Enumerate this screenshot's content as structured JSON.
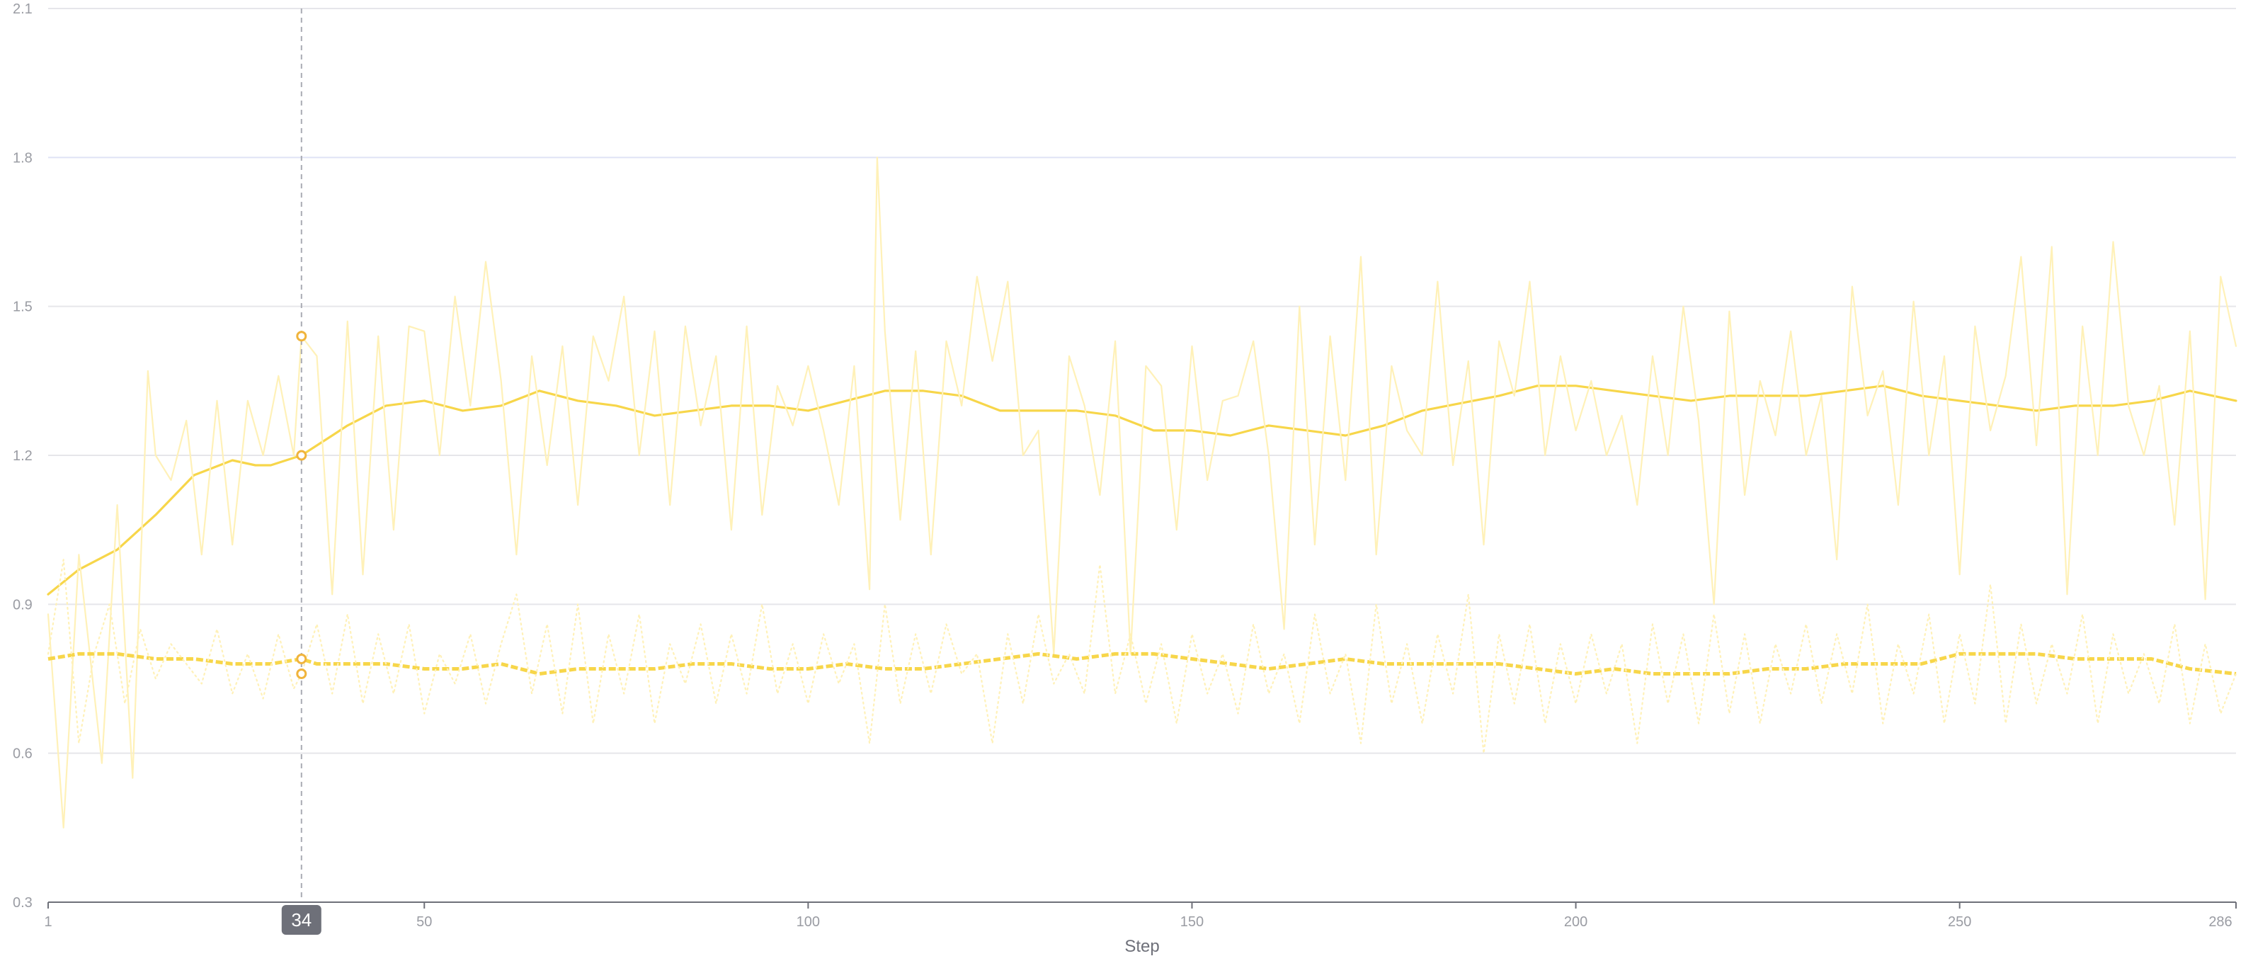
{
  "chart_data": {
    "type": "line",
    "xlabel": "Step",
    "ylabel": "",
    "xlim": [
      1,
      286
    ],
    "ylim": [
      0.3,
      2.1
    ],
    "x_ticks": [
      1,
      50,
      100,
      150,
      200,
      250,
      286
    ],
    "y_ticks": [
      0.3,
      0.6,
      0.9,
      1.2,
      1.5,
      1.8,
      2.1
    ],
    "grid": true,
    "cursor": {
      "step": 34,
      "label": "34"
    },
    "series": [
      {
        "style": "smoothed-solid",
        "color": "#f7d64a",
        "x": [
          1,
          5,
          10,
          15,
          20,
          25,
          28,
          30,
          32,
          34,
          36,
          38,
          40,
          45,
          50,
          55,
          60,
          65,
          70,
          75,
          80,
          85,
          90,
          95,
          100,
          110,
          115,
          120,
          125,
          130,
          135,
          140,
          145,
          150,
          155,
          160,
          165,
          170,
          175,
          180,
          190,
          195,
          200,
          205,
          210,
          215,
          220,
          225,
          230,
          235,
          240,
          245,
          250,
          255,
          260,
          265,
          270,
          275,
          280,
          286
        ],
        "y": [
          0.92,
          0.97,
          1.01,
          1.08,
          1.16,
          1.19,
          1.18,
          1.18,
          1.19,
          1.2,
          1.22,
          1.24,
          1.26,
          1.3,
          1.31,
          1.29,
          1.3,
          1.33,
          1.31,
          1.3,
          1.28,
          1.29,
          1.3,
          1.3,
          1.29,
          1.33,
          1.33,
          1.32,
          1.29,
          1.29,
          1.29,
          1.28,
          1.25,
          1.25,
          1.24,
          1.26,
          1.25,
          1.24,
          1.26,
          1.29,
          1.32,
          1.34,
          1.34,
          1.33,
          1.32,
          1.31,
          1.32,
          1.32,
          1.32,
          1.33,
          1.34,
          1.32,
          1.31,
          1.3,
          1.29,
          1.3,
          1.3,
          1.31,
          1.33,
          1.31
        ]
      },
      {
        "style": "raw-solid",
        "color": "#fff1b8",
        "x": [
          1,
          3,
          5,
          8,
          10,
          12,
          14,
          15,
          17,
          19,
          21,
          23,
          25,
          27,
          29,
          31,
          33,
          34,
          36,
          38,
          40,
          42,
          44,
          46,
          48,
          50,
          52,
          54,
          56,
          58,
          60,
          62,
          64,
          66,
          68,
          70,
          72,
          74,
          76,
          78,
          80,
          82,
          84,
          86,
          88,
          90,
          92,
          94,
          96,
          98,
          100,
          102,
          104,
          106,
          108,
          109,
          110,
          112,
          114,
          116,
          118,
          120,
          122,
          124,
          126,
          128,
          130,
          132,
          134,
          136,
          138,
          140,
          142,
          144,
          146,
          148,
          150,
          152,
          154,
          156,
          158,
          160,
          162,
          164,
          166,
          168,
          170,
          172,
          174,
          176,
          178,
          180,
          182,
          184,
          186,
          188,
          190,
          192,
          194,
          196,
          198,
          200,
          202,
          204,
          206,
          208,
          210,
          212,
          214,
          216,
          218,
          220,
          222,
          224,
          226,
          228,
          230,
          232,
          234,
          236,
          238,
          240,
          242,
          244,
          246,
          248,
          250,
          252,
          254,
          256,
          258,
          260,
          262,
          264,
          266,
          268,
          270,
          272,
          274,
          276,
          278,
          280,
          282,
          284,
          286
        ],
        "y": [
          0.88,
          0.45,
          1.0,
          0.58,
          1.1,
          0.55,
          1.37,
          1.2,
          1.15,
          1.27,
          1.0,
          1.31,
          1.02,
          1.31,
          1.2,
          1.36,
          1.2,
          1.44,
          1.4,
          0.92,
          1.47,
          0.96,
          1.44,
          1.05,
          1.46,
          1.45,
          1.2,
          1.52,
          1.3,
          1.59,
          1.35,
          1.0,
          1.4,
          1.18,
          1.42,
          1.1,
          1.44,
          1.35,
          1.52,
          1.2,
          1.45,
          1.1,
          1.46,
          1.26,
          1.4,
          1.05,
          1.46,
          1.08,
          1.34,
          1.26,
          1.38,
          1.25,
          1.1,
          1.38,
          0.93,
          1.8,
          1.45,
          1.07,
          1.41,
          1.0,
          1.43,
          1.3,
          1.56,
          1.39,
          1.55,
          1.2,
          1.25,
          0.8,
          1.4,
          1.3,
          1.12,
          1.43,
          0.8,
          1.38,
          1.34,
          1.05,
          1.42,
          1.15,
          1.31,
          1.32,
          1.43,
          1.2,
          0.85,
          1.5,
          1.02,
          1.44,
          1.15,
          1.6,
          1.0,
          1.38,
          1.25,
          1.2,
          1.55,
          1.18,
          1.39,
          1.02,
          1.43,
          1.32,
          1.55,
          1.2,
          1.4,
          1.25,
          1.35,
          1.2,
          1.28,
          1.1,
          1.4,
          1.2,
          1.5,
          1.27,
          0.9,
          1.49,
          1.12,
          1.35,
          1.24,
          1.45,
          1.2,
          1.32,
          0.99,
          1.54,
          1.28,
          1.37,
          1.1,
          1.51,
          1.2,
          1.4,
          0.96,
          1.46,
          1.25,
          1.36,
          1.6,
          1.22,
          1.62,
          0.92,
          1.46,
          1.2,
          1.63,
          1.3,
          1.2,
          1.34,
          1.06,
          1.45,
          0.91,
          1.56,
          1.42
        ]
      },
      {
        "style": "smoothed-dashed",
        "color": "#f7d64a",
        "x": [
          1,
          5,
          10,
          15,
          20,
          25,
          30,
          34,
          36,
          40,
          45,
          50,
          55,
          60,
          65,
          70,
          75,
          80,
          85,
          90,
          95,
          100,
          105,
          110,
          115,
          120,
          125,
          130,
          135,
          140,
          145,
          150,
          155,
          160,
          165,
          170,
          175,
          180,
          185,
          190,
          195,
          200,
          205,
          210,
          215,
          220,
          225,
          230,
          235,
          240,
          245,
          250,
          255,
          260,
          265,
          270,
          275,
          280,
          286
        ],
        "y": [
          0.79,
          0.8,
          0.8,
          0.79,
          0.79,
          0.78,
          0.78,
          0.79,
          0.78,
          0.78,
          0.78,
          0.77,
          0.77,
          0.78,
          0.76,
          0.77,
          0.77,
          0.77,
          0.78,
          0.78,
          0.77,
          0.77,
          0.78,
          0.77,
          0.77,
          0.78,
          0.79,
          0.8,
          0.79,
          0.8,
          0.8,
          0.79,
          0.78,
          0.77,
          0.78,
          0.79,
          0.78,
          0.78,
          0.78,
          0.78,
          0.77,
          0.76,
          0.77,
          0.76,
          0.76,
          0.76,
          0.77,
          0.77,
          0.78,
          0.78,
          0.78,
          0.8,
          0.8,
          0.8,
          0.79,
          0.79,
          0.79,
          0.77,
          0.76
        ]
      },
      {
        "style": "raw-dotted",
        "color": "#fff1b8",
        "x": [
          1,
          3,
          5,
          7,
          9,
          11,
          13,
          15,
          17,
          19,
          21,
          23,
          25,
          27,
          29,
          31,
          33,
          34,
          36,
          38,
          40,
          42,
          44,
          46,
          48,
          50,
          52,
          54,
          56,
          58,
          60,
          62,
          64,
          66,
          68,
          70,
          72,
          74,
          76,
          78,
          80,
          82,
          84,
          86,
          88,
          90,
          92,
          94,
          96,
          98,
          100,
          102,
          104,
          106,
          108,
          110,
          112,
          114,
          116,
          118,
          120,
          122,
          124,
          126,
          128,
          130,
          132,
          134,
          136,
          138,
          140,
          142,
          144,
          146,
          148,
          150,
          152,
          154,
          156,
          158,
          160,
          162,
          164,
          166,
          168,
          170,
          172,
          174,
          176,
          178,
          180,
          182,
          184,
          186,
          188,
          190,
          192,
          194,
          196,
          198,
          200,
          202,
          204,
          206,
          208,
          210,
          212,
          214,
          216,
          218,
          220,
          222,
          224,
          226,
          228,
          230,
          232,
          234,
          236,
          238,
          240,
          242,
          244,
          246,
          248,
          250,
          252,
          254,
          256,
          258,
          260,
          262,
          264,
          266,
          268,
          270,
          272,
          274,
          276,
          278,
          280,
          282,
          284,
          286
        ],
        "y": [
          0.8,
          0.99,
          0.62,
          0.8,
          0.9,
          0.7,
          0.85,
          0.75,
          0.82,
          0.78,
          0.74,
          0.85,
          0.72,
          0.8,
          0.71,
          0.84,
          0.73,
          0.76,
          0.86,
          0.72,
          0.88,
          0.7,
          0.84,
          0.72,
          0.86,
          0.68,
          0.8,
          0.74,
          0.84,
          0.7,
          0.82,
          0.92,
          0.72,
          0.86,
          0.68,
          0.9,
          0.66,
          0.84,
          0.72,
          0.88,
          0.66,
          0.82,
          0.74,
          0.86,
          0.7,
          0.84,
          0.72,
          0.9,
          0.72,
          0.82,
          0.7,
          0.84,
          0.74,
          0.82,
          0.62,
          0.9,
          0.7,
          0.84,
          0.72,
          0.86,
          0.76,
          0.8,
          0.62,
          0.84,
          0.7,
          0.88,
          0.74,
          0.8,
          0.72,
          0.98,
          0.72,
          0.84,
          0.7,
          0.82,
          0.66,
          0.84,
          0.72,
          0.8,
          0.68,
          0.86,
          0.72,
          0.8,
          0.66,
          0.88,
          0.72,
          0.8,
          0.62,
          0.9,
          0.7,
          0.82,
          0.66,
          0.84,
          0.72,
          0.92,
          0.6,
          0.84,
          0.7,
          0.86,
          0.66,
          0.82,
          0.7,
          0.84,
          0.72,
          0.82,
          0.62,
          0.86,
          0.7,
          0.84,
          0.66,
          0.88,
          0.68,
          0.84,
          0.66,
          0.82,
          0.72,
          0.86,
          0.7,
          0.84,
          0.72,
          0.9,
          0.66,
          0.82,
          0.72,
          0.88,
          0.66,
          0.84,
          0.7,
          0.94,
          0.66,
          0.86,
          0.7,
          0.82,
          0.72,
          0.88,
          0.66,
          0.84,
          0.72,
          0.8,
          0.7,
          0.86,
          0.66,
          0.82,
          0.68,
          0.76
        ]
      }
    ]
  }
}
